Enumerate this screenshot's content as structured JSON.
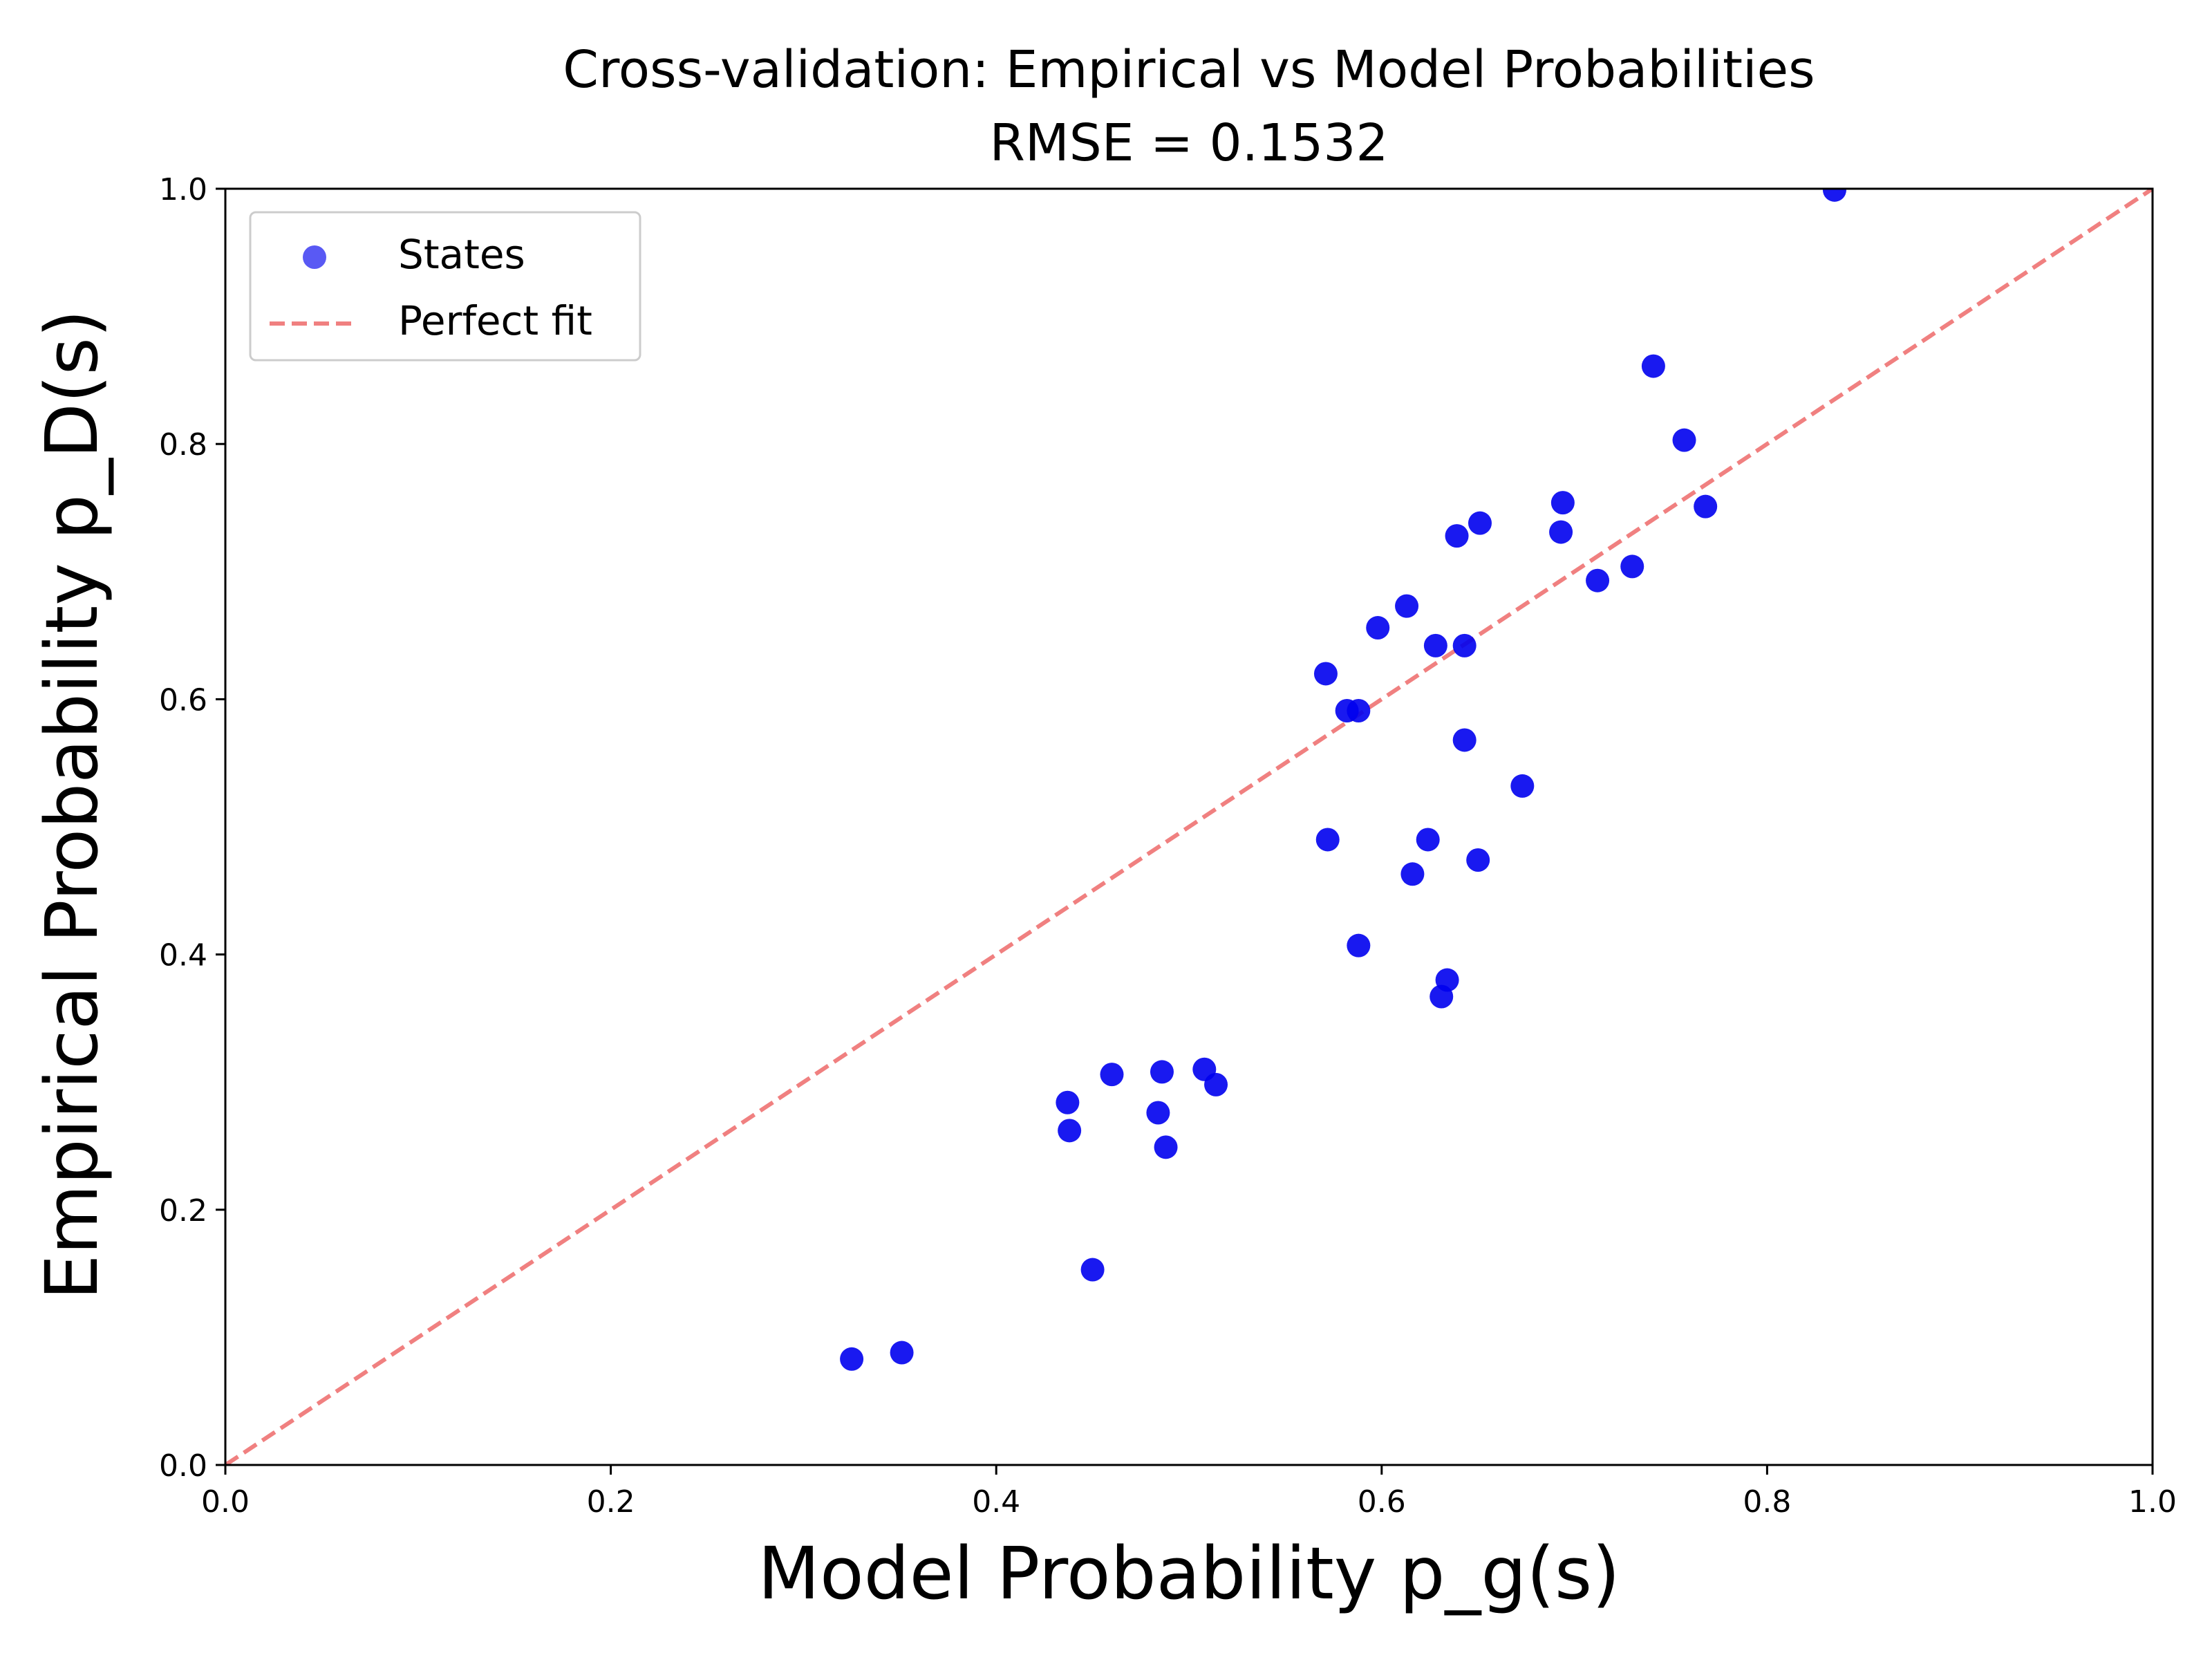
{
  "chart_data": {
    "type": "scatter",
    "title": "Cross-validation: Empirical vs Model Probabilities",
    "subtitle": "RMSE = 0.1532",
    "xlabel": "Model Probability p_g(s)",
    "ylabel": "Empirical Probability p_D(s)",
    "xlim": [
      0.0,
      1.0
    ],
    "ylim": [
      0.0,
      1.0
    ],
    "xticks": [
      "0.0",
      "0.2",
      "0.4",
      "0.6",
      "0.8",
      "1.0"
    ],
    "yticks": [
      "0.0",
      "0.2",
      "0.4",
      "0.6",
      "0.8",
      "1.0"
    ],
    "grid": false,
    "legend_position": "top-left",
    "series": [
      {
        "name": "States",
        "kind": "scatter",
        "color": "#0000ee",
        "points": [
          [
            0.325,
            0.083
          ],
          [
            0.351,
            0.088
          ],
          [
            0.437,
            0.284
          ],
          [
            0.438,
            0.262
          ],
          [
            0.45,
            0.153
          ],
          [
            0.46,
            0.306
          ],
          [
            0.484,
            0.276
          ],
          [
            0.486,
            0.308
          ],
          [
            0.488,
            0.249
          ],
          [
            0.508,
            0.31
          ],
          [
            0.514,
            0.298
          ],
          [
            0.571,
            0.62
          ],
          [
            0.572,
            0.49
          ],
          [
            0.582,
            0.591
          ],
          [
            0.588,
            0.591
          ],
          [
            0.588,
            0.407
          ],
          [
            0.598,
            0.656
          ],
          [
            0.613,
            0.673
          ],
          [
            0.616,
            0.463
          ],
          [
            0.624,
            0.49
          ],
          [
            0.628,
            0.642
          ],
          [
            0.631,
            0.367
          ],
          [
            0.634,
            0.38
          ],
          [
            0.639,
            0.728
          ],
          [
            0.643,
            0.642
          ],
          [
            0.643,
            0.568
          ],
          [
            0.65,
            0.474
          ],
          [
            0.651,
            0.738
          ],
          [
            0.673,
            0.532
          ],
          [
            0.693,
            0.731
          ],
          [
            0.694,
            0.754
          ],
          [
            0.712,
            0.693
          ],
          [
            0.73,
            0.704
          ],
          [
            0.741,
            0.861
          ],
          [
            0.757,
            0.803
          ],
          [
            0.768,
            0.751
          ],
          [
            0.835,
            0.999
          ]
        ]
      },
      {
        "name": "Perfect fit",
        "kind": "line",
        "color": "#f08080",
        "dashed": true,
        "x": [
          0.0,
          1.0
        ],
        "y": [
          0.0,
          1.0
        ]
      }
    ]
  }
}
